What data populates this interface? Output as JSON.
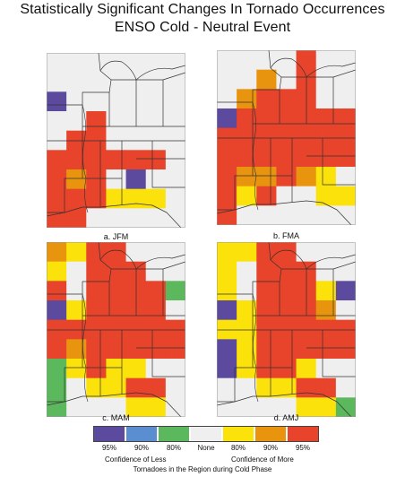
{
  "title_line1": "Statistically Significant Changes In Tornado Occurrences",
  "title_line2": "ENSO Cold - Neutral Event",
  "colors": {
    "less95": "#5b4a9e",
    "less90": "#5b8ed0",
    "less80": "#5cb85c",
    "none": "#efefef",
    "more80": "#fae20a",
    "more90": "#e9940e",
    "more95": "#e8432b"
  },
  "panels": [
    {
      "label": "a. JFM",
      "grid": [
        [
          "none",
          "none",
          "none",
          "none",
          "none",
          "none",
          "none"
        ],
        [
          "none",
          "none",
          "none",
          "none",
          "none",
          "none",
          "none"
        ],
        [
          "less95",
          "none",
          "none",
          "none",
          "none",
          "none",
          "none"
        ],
        [
          "none",
          "none",
          "more95",
          "none",
          "none",
          "none",
          "none"
        ],
        [
          "none",
          "more95",
          "more95",
          "none",
          "none",
          "none",
          "none"
        ],
        [
          "more95",
          "more95",
          "more95",
          "more95",
          "more95",
          "more95",
          "none"
        ],
        [
          "more95",
          "more90",
          "more95",
          "none",
          "less95",
          "none",
          "none"
        ],
        [
          "more95",
          "more95",
          "more95",
          "more80",
          "more80",
          "more80",
          "none"
        ],
        [
          "more95",
          "more95",
          "none",
          "none",
          "none",
          "none",
          "none"
        ]
      ]
    },
    {
      "label": "b. FMA",
      "grid": [
        [
          "none",
          "none",
          "none",
          "none",
          "more95",
          "none",
          "none"
        ],
        [
          "none",
          "none",
          "more90",
          "none",
          "more95",
          "none",
          "none"
        ],
        [
          "none",
          "more90",
          "more95",
          "more95",
          "more95",
          "none",
          "none"
        ],
        [
          "less95",
          "more95",
          "more95",
          "more95",
          "more95",
          "more95",
          "more95"
        ],
        [
          "more95",
          "more95",
          "more95",
          "more95",
          "more95",
          "more95",
          "more95"
        ],
        [
          "more95",
          "more95",
          "more95",
          "more95",
          "more95",
          "more95",
          "more95"
        ],
        [
          "more95",
          "more90",
          "more90",
          "more95",
          "more90",
          "more80",
          "none"
        ],
        [
          "more95",
          "more80",
          "more95",
          "none",
          "none",
          "more80",
          "more80"
        ],
        [
          "more95",
          "none",
          "none",
          "none",
          "none",
          "none",
          "none"
        ]
      ]
    },
    {
      "label": "c. MAM",
      "grid": [
        [
          "more90",
          "more80",
          "more95",
          "more95",
          "none",
          "none",
          "none"
        ],
        [
          "more80",
          "none",
          "more95",
          "more95",
          "more95",
          "none",
          "none"
        ],
        [
          "more95",
          "none",
          "more95",
          "more95",
          "more95",
          "more95",
          "less80"
        ],
        [
          "less95",
          "more80",
          "more95",
          "more95",
          "more95",
          "more95",
          "none"
        ],
        [
          "more95",
          "more95",
          "more95",
          "more95",
          "more95",
          "more95",
          "more95"
        ],
        [
          "more95",
          "more90",
          "more95",
          "more95",
          "more95",
          "more95",
          "more95"
        ],
        [
          "less80",
          "more80",
          "more95",
          "more80",
          "more80",
          "none",
          "none"
        ],
        [
          "less80",
          "none",
          "more80",
          "more80",
          "more95",
          "more95",
          "none"
        ],
        [
          "less80",
          "none",
          "none",
          "none",
          "more80",
          "more80",
          "none"
        ]
      ]
    },
    {
      "label": "d. AMJ",
      "grid": [
        [
          "more80",
          "more80",
          "more95",
          "more95",
          "none",
          "none",
          "none"
        ],
        [
          "more80",
          "none",
          "more95",
          "more95",
          "more95",
          "none",
          "none"
        ],
        [
          "more80",
          "none",
          "more95",
          "more95",
          "more95",
          "more80",
          "less95"
        ],
        [
          "less95",
          "more80",
          "more95",
          "more95",
          "more95",
          "more90",
          "none"
        ],
        [
          "more80",
          "more80",
          "more95",
          "more95",
          "more95",
          "more95",
          "more95"
        ],
        [
          "less95",
          "more80",
          "more95",
          "more95",
          "more95",
          "more95",
          "more95"
        ],
        [
          "less95",
          "more80",
          "more95",
          "more95",
          "more80",
          "none",
          "none"
        ],
        [
          "none",
          "none",
          "more80",
          "more80",
          "more95",
          "more95",
          "none"
        ],
        [
          "none",
          "none",
          "none",
          "none",
          "more80",
          "more80",
          "less80"
        ]
      ]
    }
  ],
  "legend": {
    "boxes": [
      {
        "label": "95%",
        "color_key": "less95"
      },
      {
        "label": "90%",
        "color_key": "less90"
      },
      {
        "label": "80%",
        "color_key": "less80"
      },
      {
        "label": "None",
        "color_key": "none"
      },
      {
        "label": "80%",
        "color_key": "more80"
      },
      {
        "label": "90%",
        "color_key": "more90"
      },
      {
        "label": "95%",
        "color_key": "more95"
      }
    ],
    "caption_less": "Confidence of Less",
    "caption_more": "Confidence of More",
    "footer": "Tornadoes in the Region during Cold Phase"
  }
}
